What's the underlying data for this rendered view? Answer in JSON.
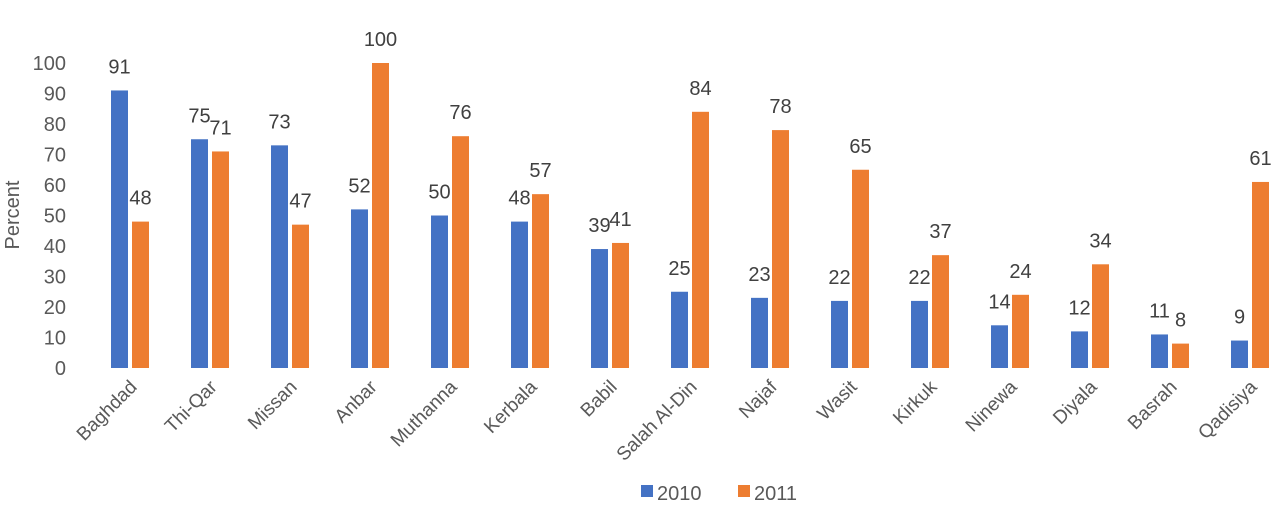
{
  "chart_data": {
    "type": "bar",
    "title": "",
    "xlabel": "",
    "ylabel": "Percent",
    "ylim": [
      0,
      100
    ],
    "yticks": [
      0,
      10,
      20,
      30,
      40,
      50,
      60,
      70,
      80,
      90,
      100
    ],
    "grid": false,
    "legend_position": "bottom",
    "categories": [
      "Baghdad",
      "Thi-Qar",
      "Missan",
      "Anbar",
      "Muthanna",
      "Kerbala",
      "Babil",
      "Salah Al-Din",
      "Najaf",
      "Wasit",
      "Kirkuk",
      "Ninewa",
      "Diyala",
      "Basrah",
      "Qadisiya"
    ],
    "series": [
      {
        "name": "2010",
        "color": "#4472C4",
        "values": [
          91,
          75,
          73,
          52,
          50,
          48,
          39,
          25,
          23,
          22,
          22,
          14,
          12,
          11,
          9
        ]
      },
      {
        "name": "2011",
        "color": "#ED7D31",
        "values": [
          48,
          71,
          47,
          100,
          76,
          57,
          41,
          84,
          78,
          65,
          37,
          24,
          34,
          8,
          61
        ]
      }
    ]
  }
}
